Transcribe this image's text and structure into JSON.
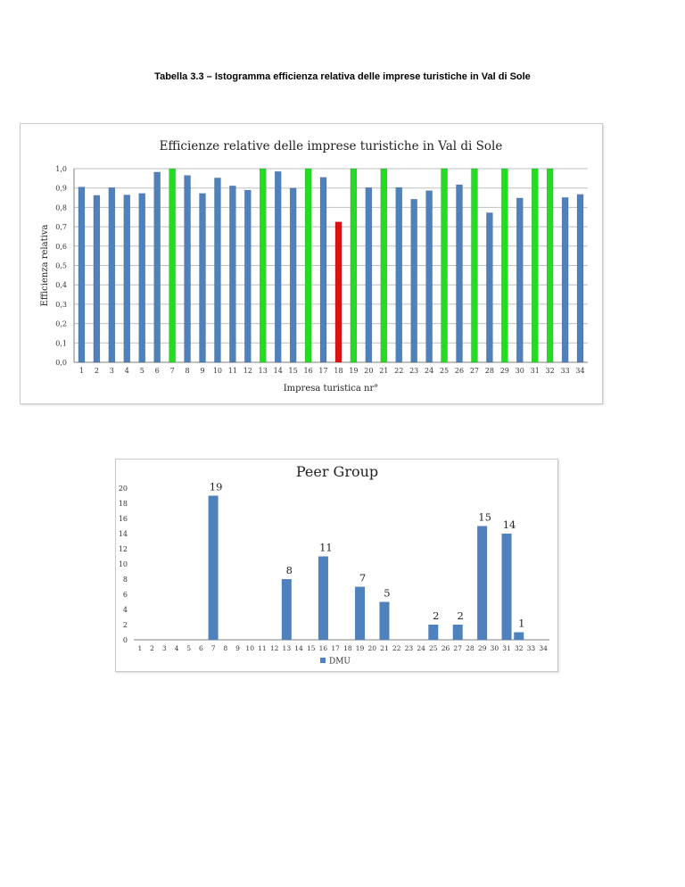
{
  "caption": "Tabella 3.3 – Istogramma efficienza relativa delle imprese turistiche in Val di Sole",
  "colors": {
    "blue": "#4f81bd",
    "green": "#22dd22",
    "red": "#e01010",
    "grid": "#bfbfbf",
    "axis": "#7f7f7f"
  },
  "chart_data": [
    {
      "type": "bar",
      "title": "Efficienze relative delle imprese turistiche in Val di Sole",
      "xlabel": "Impresa turistica nr°",
      "ylabel": "Efficienza relativa",
      "ylim": [
        0,
        1
      ],
      "grid": true,
      "y_ticks": [
        "0,0",
        "0,1",
        "0,2",
        "0,3",
        "0,4",
        "0,5",
        "0,6",
        "0,7",
        "0,8",
        "0,9",
        "1,0"
      ],
      "categories": [
        "1",
        "2",
        "3",
        "4",
        "5",
        "6",
        "7",
        "8",
        "9",
        "10",
        "11",
        "12",
        "13",
        "14",
        "15",
        "16",
        "17",
        "18",
        "19",
        "20",
        "21",
        "22",
        "23",
        "24",
        "25",
        "26",
        "27",
        "28",
        "29",
        "30",
        "31",
        "32",
        "33",
        "34"
      ],
      "values": [
        0.905,
        0.862,
        0.902,
        0.864,
        0.872,
        0.982,
        1.0,
        0.965,
        0.872,
        0.952,
        0.911,
        0.889,
        1.0,
        0.985,
        0.899,
        1.0,
        0.955,
        0.725,
        1.0,
        0.902,
        1.0,
        0.903,
        0.842,
        0.886,
        1.0,
        0.917,
        1.0,
        0.772,
        1.0,
        0.848,
        1.0,
        1.0,
        0.851,
        0.867
      ],
      "bar_colors": [
        "blue",
        "blue",
        "blue",
        "blue",
        "blue",
        "blue",
        "green",
        "blue",
        "blue",
        "blue",
        "blue",
        "blue",
        "green",
        "blue",
        "blue",
        "green",
        "blue",
        "red",
        "green",
        "blue",
        "green",
        "blue",
        "blue",
        "blue",
        "green",
        "blue",
        "green",
        "blue",
        "green",
        "blue",
        "green",
        "green",
        "blue",
        "blue"
      ]
    },
    {
      "type": "bar",
      "title": "Peer Group",
      "legend": [
        "DMU"
      ],
      "legend_position": "bottom",
      "ylim": [
        0,
        20
      ],
      "grid": false,
      "y_ticks": [
        "0",
        "2",
        "4",
        "6",
        "8",
        "10",
        "12",
        "14",
        "16",
        "18",
        "20"
      ],
      "categories": [
        "1",
        "2",
        "3",
        "4",
        "5",
        "6",
        "7",
        "8",
        "9",
        "10",
        "11",
        "12",
        "13",
        "14",
        "15",
        "16",
        "17",
        "18",
        "19",
        "20",
        "21",
        "22",
        "23",
        "24",
        "25",
        "26",
        "27",
        "28",
        "29",
        "30",
        "31",
        "32",
        "33",
        "34"
      ],
      "values": [
        0,
        0,
        0,
        0,
        0,
        0,
        19,
        0,
        0,
        0,
        0,
        0,
        8,
        0,
        0,
        11,
        0,
        0,
        7,
        0,
        5,
        0,
        0,
        0,
        2,
        0,
        2,
        0,
        15,
        0,
        14,
        1,
        0,
        0
      ],
      "data_labels": [
        "",
        "",
        "",
        "",
        "",
        "",
        "19",
        "",
        "",
        "",
        "",
        "",
        "8",
        "",
        "",
        "11",
        "",
        "",
        "7",
        "",
        "5",
        "",
        "",
        "",
        "2",
        "",
        "2",
        "",
        "15",
        "",
        "14",
        "1",
        "",
        ""
      ]
    }
  ]
}
